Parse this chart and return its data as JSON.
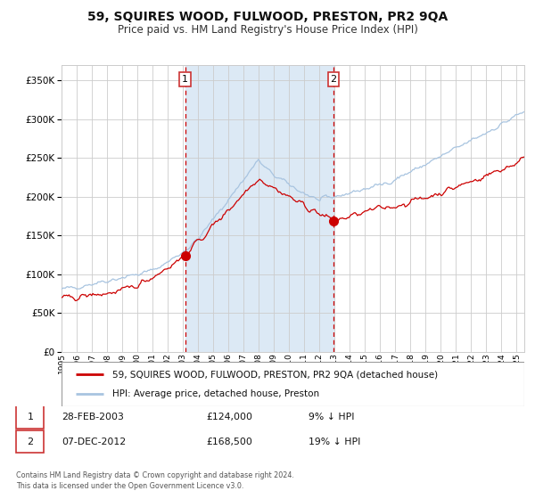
{
  "title": "59, SQUIRES WOOD, FULWOOD, PRESTON, PR2 9QA",
  "subtitle": "Price paid vs. HM Land Registry's House Price Index (HPI)",
  "legend_line1": "59, SQUIRES WOOD, FULWOOD, PRESTON, PR2 9QA (detached house)",
  "legend_line2": "HPI: Average price, detached house, Preston",
  "transaction1_date": "28-FEB-2003",
  "transaction1_price": 124000,
  "transaction1_year": 2003.15,
  "transaction2_date": "07-DEC-2012",
  "transaction2_price": 168500,
  "transaction2_year": 2012.92,
  "footnote": "Contains HM Land Registry data © Crown copyright and database right 2024.\nThis data is licensed under the Open Government Licence v3.0.",
  "table_row1": [
    "1",
    "28-FEB-2003",
    "£124,000",
    "9% ↓ HPI"
  ],
  "table_row2": [
    "2",
    "07-DEC-2012",
    "£168,500",
    "19% ↓ HPI"
  ],
  "ylim": [
    0,
    370000
  ],
  "background_color": "#ffffff",
  "grid_color": "#cccccc",
  "hpi_color": "#a8c4e0",
  "price_color": "#cc0000",
  "shade_color": "#dce9f5",
  "vline_color": "#cc0000",
  "marker_color": "#cc0000",
  "box_color": "#cc3333",
  "xstart": 1995,
  "xend": 2025.5
}
